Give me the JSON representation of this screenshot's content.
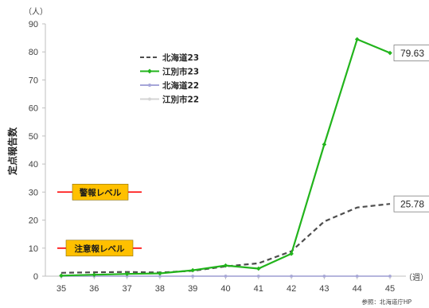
{
  "chart_data": {
    "type": "line",
    "y_unit": "（人）",
    "x_unit": "（週）",
    "ylabel": "定点報告数",
    "ylim": [
      0,
      90
    ],
    "yticks": [
      0,
      10,
      20,
      30,
      40,
      50,
      60,
      70,
      80,
      90
    ],
    "x": [
      35,
      36,
      37,
      38,
      39,
      40,
      41,
      42,
      43,
      44,
      45
    ],
    "grid": false,
    "legend_position": "upper-left",
    "series": [
      {
        "name": "北海道23",
        "color": "#4d4d4d",
        "style": "dashed",
        "marker": "none",
        "values": [
          1.2,
          1.4,
          1.5,
          1.3,
          1.9,
          3.5,
          4.6,
          8.9,
          19.5,
          24.5,
          25.78
        ]
      },
      {
        "name": "江別市23",
        "color": "#22b41c",
        "style": "solid",
        "marker": "diamond",
        "values": [
          0.2,
          0.5,
          0.8,
          1.0,
          2.1,
          3.8,
          2.7,
          8.0,
          47.0,
          84.5,
          79.63
        ]
      },
      {
        "name": "北海道22",
        "color": "#a6a6d9",
        "style": "solid",
        "marker": "x",
        "values": [
          0,
          0,
          0,
          0,
          0,
          0,
          0,
          0,
          0,
          0,
          0
        ]
      },
      {
        "name": "江別市22",
        "color": "#d4d4d4",
        "style": "solid",
        "marker": "circle",
        "values": [
          0,
          0,
          0,
          0,
          0,
          0,
          0,
          0,
          0,
          0,
          0
        ]
      }
    ],
    "end_labels": [
      {
        "series": "江別市23",
        "text": "79.63"
      },
      {
        "series": "北海道23",
        "text": "25.78"
      }
    ],
    "thresholds": [
      {
        "label": "警報レベル",
        "value": 30,
        "color": "#ff0000",
        "box_color": "#ffc000"
      },
      {
        "label": "注意報レベル",
        "value": 10,
        "color": "#ff0000",
        "box_color": "#ffc000"
      }
    ],
    "source": "参照：北海道庁HP"
  }
}
